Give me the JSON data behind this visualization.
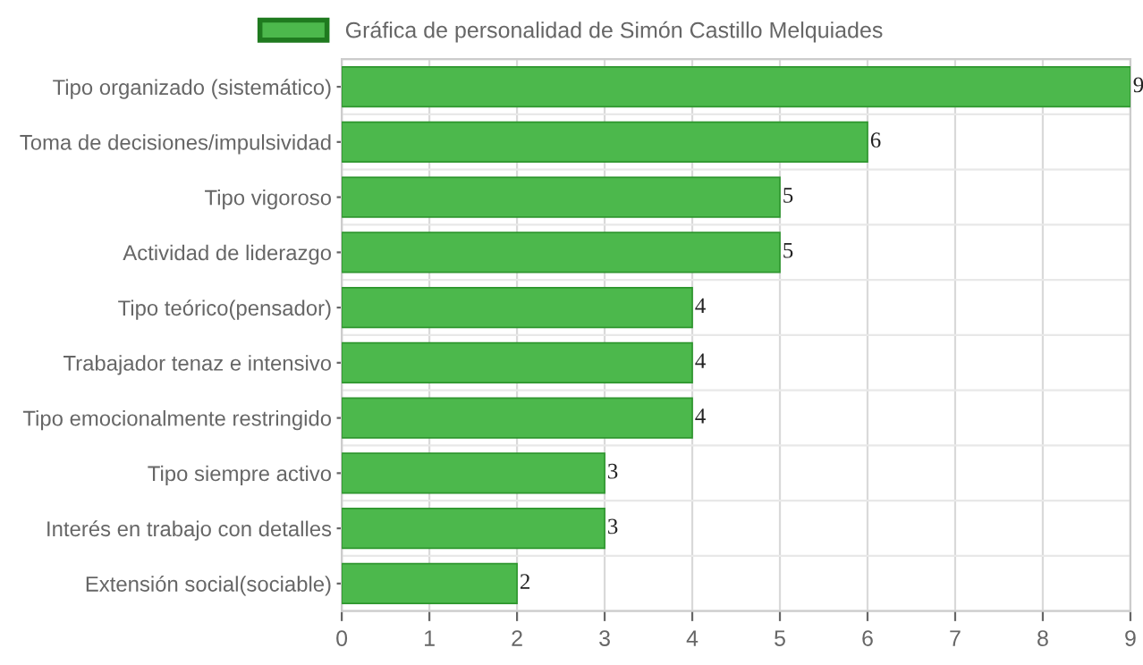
{
  "chart_data": {
    "type": "bar",
    "orientation": "horizontal",
    "categories": [
      "Tipo organizado (sistemático)",
      "Toma de decisiones/impulsividad",
      "Tipo vigoroso",
      "Actividad de liderazgo",
      "Tipo teórico(pensador)",
      "Trabajador tenaz e intensivo",
      "Tipo emocionalmente restringido",
      "Tipo siempre activo",
      "Interés en trabajo con detalles",
      "Extensión social(sociable)"
    ],
    "series": [
      {
        "name": "Gráfica de personalidad de Simón Castillo Melquiades",
        "color": "#4cb84c",
        "values": [
          9,
          6,
          5,
          5,
          4,
          4,
          4,
          3,
          3,
          2
        ]
      }
    ],
    "xlim": [
      0,
      9
    ],
    "xticks": [
      0,
      1,
      2,
      3,
      4,
      5,
      6,
      7,
      8,
      9
    ],
    "grid": true,
    "legend": "top",
    "data_labels": true
  }
}
